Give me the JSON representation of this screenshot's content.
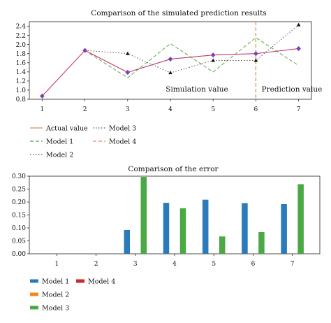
{
  "chart_data": [
    {
      "type": "line",
      "title": "Comparison of the simulated prediction results",
      "x": [
        1,
        2,
        3,
        4,
        5,
        6,
        7
      ],
      "xticks": [
        "1",
        "2",
        "3",
        "4",
        "5",
        "6",
        "7"
      ],
      "ylim": [
        0.8,
        2.5
      ],
      "yticks": [
        "0.8",
        "1.0",
        "1.2",
        "1.4",
        "1.6",
        "1.8",
        "2.0",
        "2.2",
        "2.4"
      ],
      "split_x": 6,
      "annotations": {
        "left": "Simulation value",
        "right": "Prediction value"
      },
      "legend": [
        {
          "name": "Actual value",
          "style": "solid",
          "color": "#d98a5f"
        },
        {
          "name": "Model 1",
          "style": "dashed",
          "color": "#5aa545"
        },
        {
          "name": "Model 2",
          "style": "dotted",
          "color": "#555555"
        },
        {
          "name": "Model 3",
          "style": "dotted",
          "color": "#555555"
        },
        {
          "name": "Model 4",
          "style": "dashed",
          "color": "#d98a5f"
        }
      ],
      "series": [
        {
          "name": "Actual value",
          "color": "#c0396a",
          "marker": "diamond",
          "marker_color": "#7b3fb8",
          "values": [
            0.87,
            1.87,
            1.39,
            1.68,
            1.77,
            1.8,
            1.91
          ]
        },
        {
          "name": "Model 1",
          "color": "#5aa545",
          "style": "dashed",
          "values": [
            null,
            1.87,
            1.27,
            2.02,
            1.4,
            2.15,
            1.54
          ]
        },
        {
          "name": "Model 3",
          "color": "#555555",
          "style": "dotted",
          "marker": "triangle",
          "values": [
            null,
            1.87,
            1.8,
            1.38,
            1.65,
            1.65,
            2.43
          ]
        }
      ]
    },
    {
      "type": "bar",
      "title": "Comparison of the error",
      "categories": [
        "1",
        "2",
        "3",
        "4",
        "5",
        "6",
        "7"
      ],
      "ylim": [
        0,
        0.3
      ],
      "yticks": [
        "0.00",
        "0.05",
        "0.10",
        "0.15",
        "0.20",
        "0.25",
        "0.30"
      ],
      "legend": [
        {
          "name": "Model 1",
          "color": "#2b7bba"
        },
        {
          "name": "Model 4",
          "color": "#cc2a2a"
        },
        {
          "name": "Model 2",
          "color": "#ee8a22"
        },
        {
          "name": "Model 3",
          "color": "#4aa845"
        }
      ],
      "series": [
        {
          "name": "Model 1",
          "color": "#2b7bba",
          "values": [
            null,
            null,
            0.092,
            0.197,
            0.209,
            0.196,
            0.192
          ]
        },
        {
          "name": "Model 3",
          "color": "#4aa845",
          "values": [
            null,
            null,
            0.297,
            0.176,
            0.067,
            0.084,
            0.269
          ]
        }
      ]
    }
  ]
}
